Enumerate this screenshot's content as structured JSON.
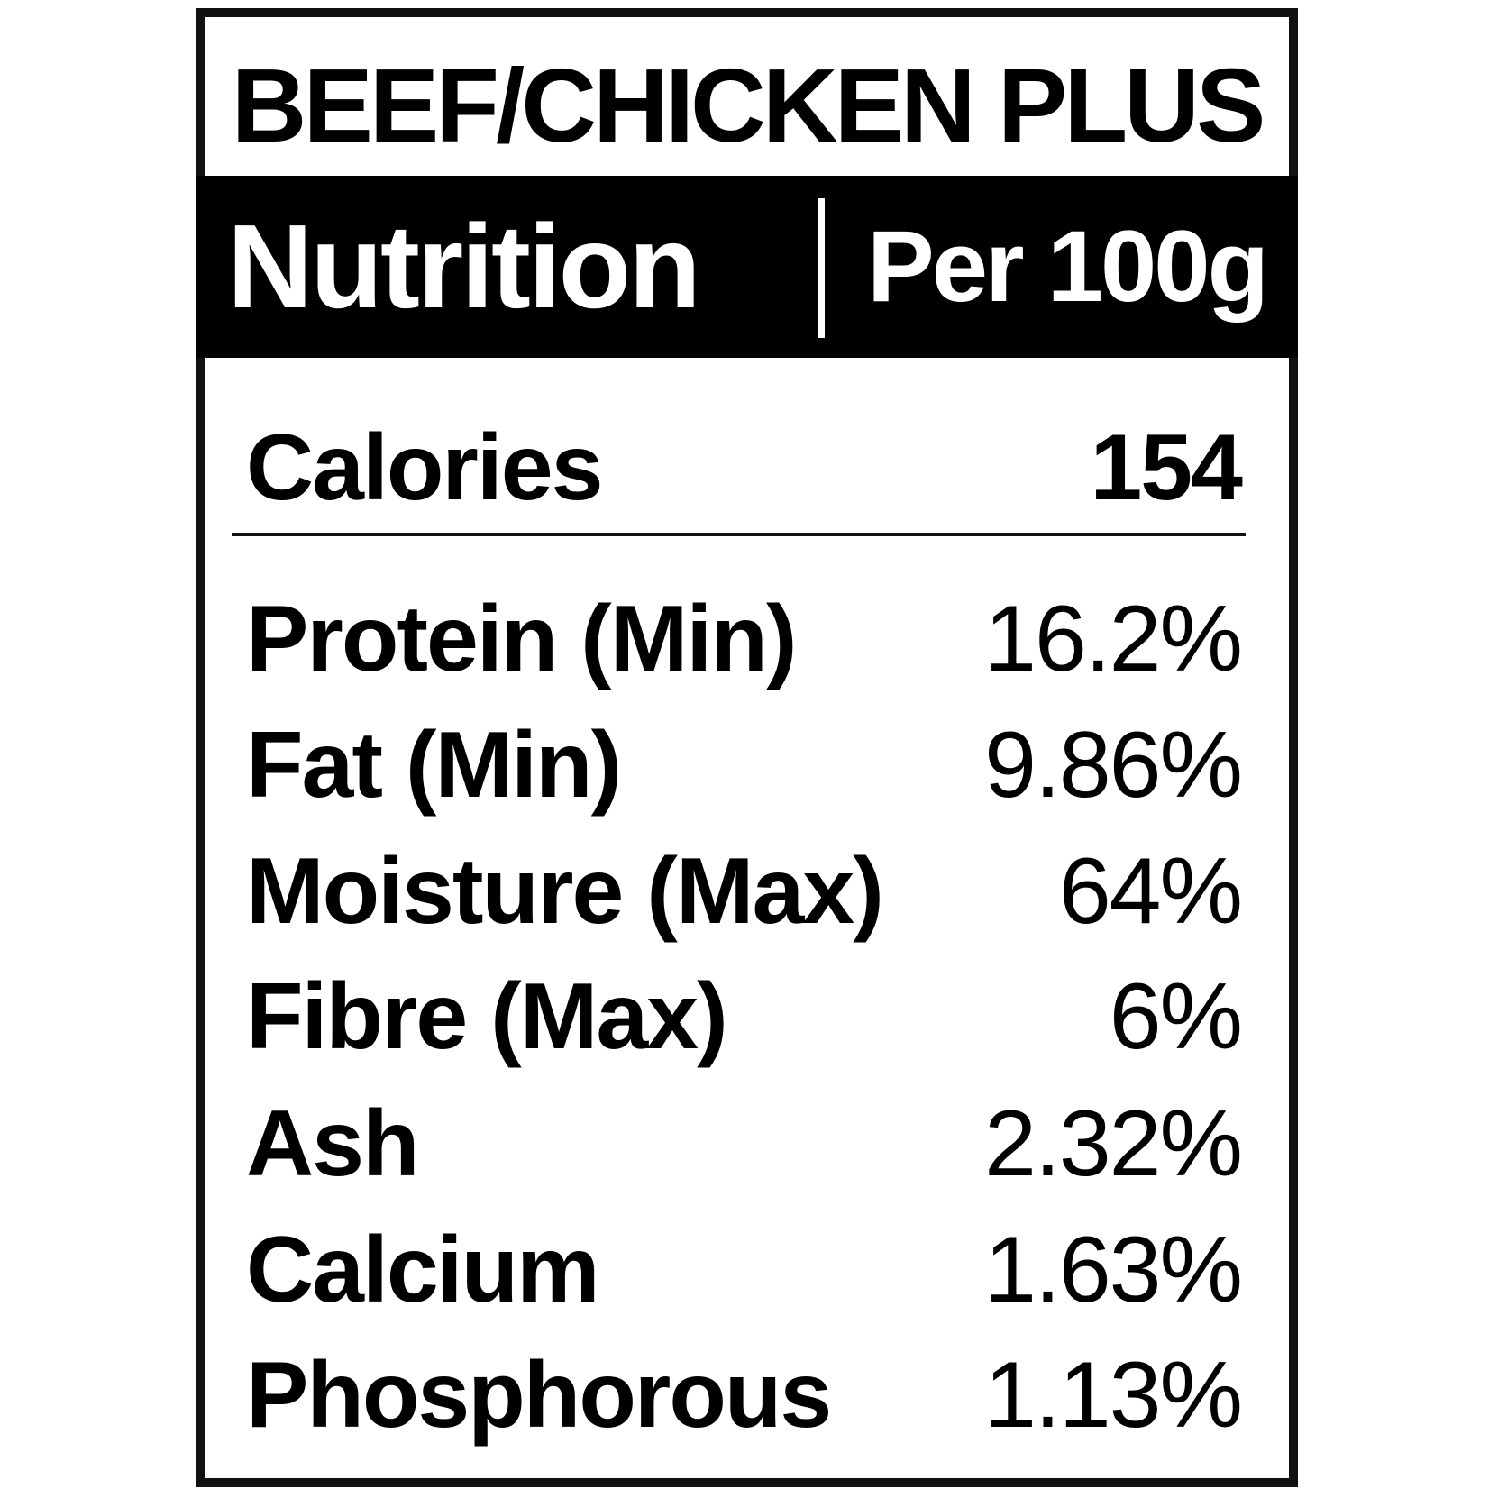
{
  "title": "BEEF/CHICKEN PLUS",
  "header": {
    "left": "Nutrition",
    "right": "Per 100g"
  },
  "calories": {
    "label": "Calories",
    "value": "154"
  },
  "nutrients": [
    {
      "label": "Protein (Min)",
      "value": "16.2%"
    },
    {
      "label": "Fat (Min)",
      "value": "9.86%"
    },
    {
      "label": "Moisture (Max)",
      "value": "64%"
    },
    {
      "label": "Fibre (Max)",
      "value": "6%"
    },
    {
      "label": "Ash",
      "value": "2.32%"
    },
    {
      "label": "Calcium",
      "value": "1.63%"
    },
    {
      "label": "Phosphorous",
      "value": "1.13%"
    }
  ]
}
